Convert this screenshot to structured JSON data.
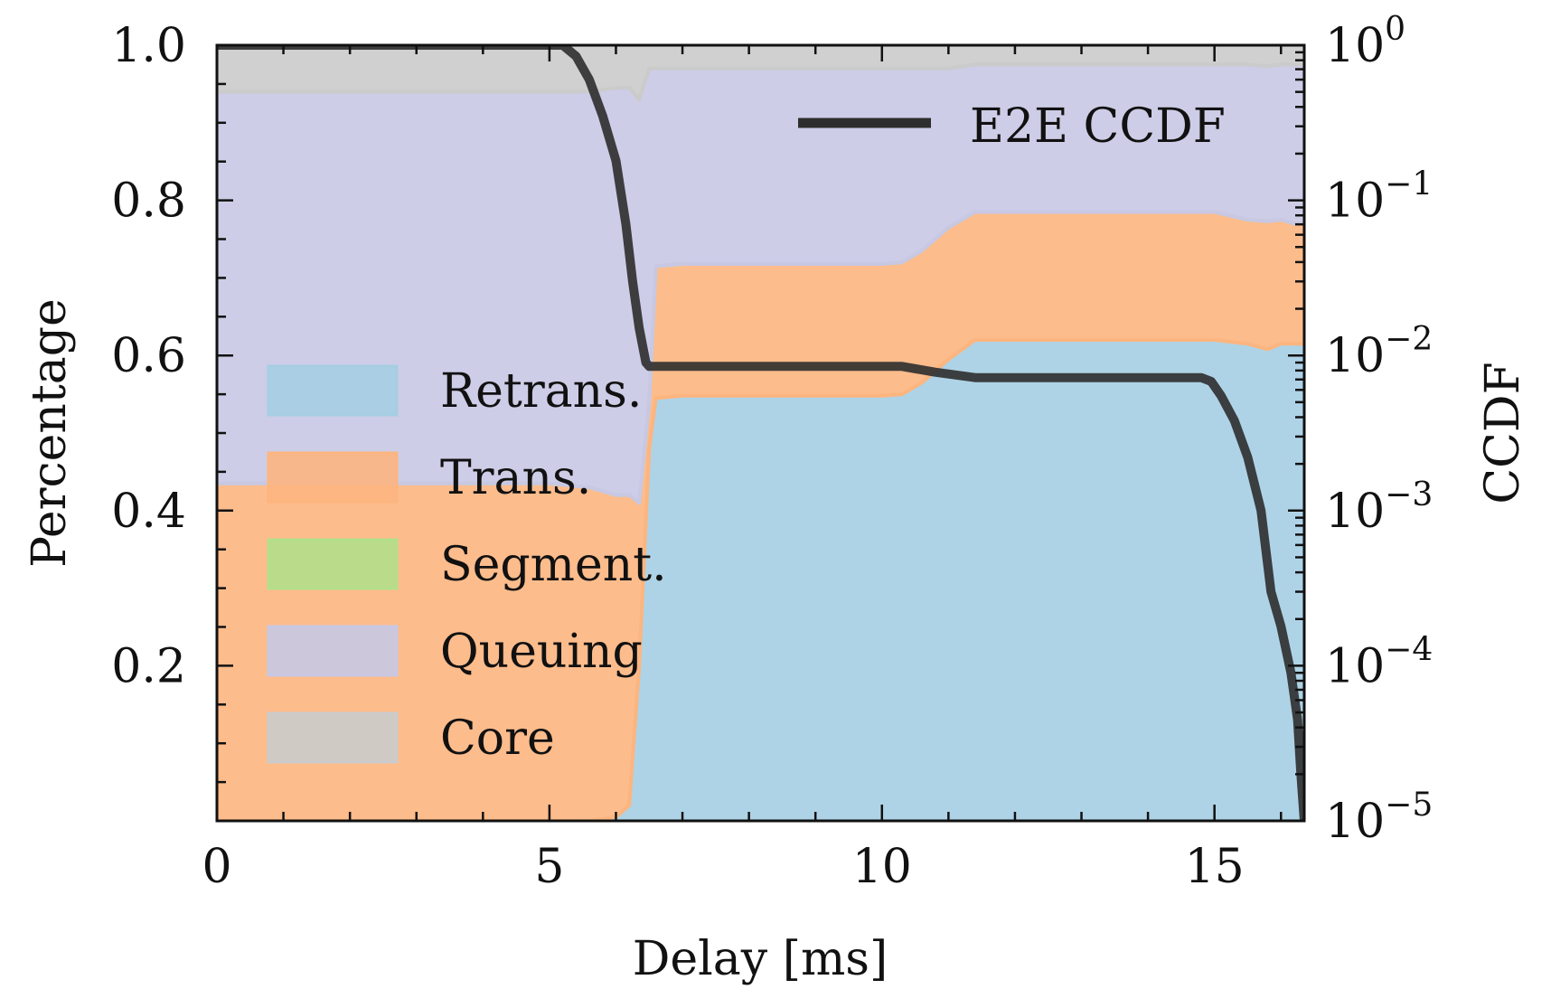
{
  "chart_data": {
    "type": "area",
    "xlabel": "Delay [ms]",
    "ylabel_left": "Percentage",
    "ylabel_right": "CCDF",
    "xlim": [
      0,
      16.35
    ],
    "ylim_left": [
      0,
      1.0
    ],
    "ylim_right": [
      1e-05,
      1
    ],
    "x_ticks": [
      0,
      5,
      10,
      15
    ],
    "x_tick_labels": [
      "0",
      "5",
      "10",
      "15"
    ],
    "y_left_ticks": [
      0.2,
      0.4,
      0.6,
      0.8,
      1.0
    ],
    "y_left_tick_labels": [
      "0.2",
      "0.4",
      "0.6",
      "0.8",
      "1.0"
    ],
    "y_right_ticks": [
      {
        "value": 1,
        "base": "10",
        "exp": "0"
      },
      {
        "value": 0.1,
        "base": "10",
        "exp": "−1"
      },
      {
        "value": 0.01,
        "base": "10",
        "exp": "−2"
      },
      {
        "value": 0.001,
        "base": "10",
        "exp": "−3"
      },
      {
        "value": 0.0001,
        "base": "10",
        "exp": "−4"
      },
      {
        "value": 1e-05,
        "base": "10",
        "exp": "−5"
      }
    ],
    "x": [
      0,
      5.0,
      5.6,
      6.0,
      6.2,
      6.35,
      6.5,
      6.6,
      7.0,
      8.0,
      9.0,
      10.0,
      10.3,
      10.6,
      11.0,
      11.4,
      12.0,
      13.0,
      14.0,
      15.0,
      15.5,
      15.8,
      16.0,
      16.2,
      16.35
    ],
    "series": [
      {
        "name": "Retrans.",
        "color": "#a6cee3",
        "values": [
          0,
          0,
          0,
          0.005,
          0.02,
          0.2,
          0.48,
          0.545,
          0.548,
          0.548,
          0.548,
          0.548,
          0.55,
          0.565,
          0.595,
          0.62,
          0.62,
          0.62,
          0.62,
          0.62,
          0.615,
          0.608,
          0.615,
          0.615,
          0.615
        ]
      },
      {
        "name": "Trans.",
        "color": "#fdb57f",
        "values": [
          0.435,
          0.435,
          0.43,
          0.415,
          0.4,
          0.21,
          0.06,
          0.17,
          0.17,
          0.17,
          0.17,
          0.17,
          0.17,
          0.17,
          0.17,
          0.165,
          0.165,
          0.165,
          0.165,
          0.165,
          0.16,
          0.165,
          0.16,
          0.155,
          0.155
        ]
      },
      {
        "name": "Segment.",
        "color": "#b2df8a",
        "values": [
          0,
          0,
          0,
          0,
          0,
          0,
          0,
          0,
          0,
          0,
          0,
          0,
          0,
          0,
          0,
          0,
          0,
          0,
          0,
          0,
          0,
          0,
          0,
          0,
          0
        ]
      },
      {
        "name": "Queuing",
        "color": "#c8c8e4",
        "values": [
          0.505,
          0.505,
          0.51,
          0.525,
          0.525,
          0.52,
          0.43,
          0.255,
          0.252,
          0.252,
          0.252,
          0.252,
          0.25,
          0.235,
          0.205,
          0.19,
          0.19,
          0.19,
          0.19,
          0.19,
          0.2,
          0.2,
          0.2,
          0.205,
          0.205
        ]
      },
      {
        "name": "Core",
        "color": "#cbcbcb",
        "values": [
          0.06,
          0.06,
          0.06,
          0.055,
          0.055,
          0.07,
          0.03,
          0.03,
          0.03,
          0.03,
          0.03,
          0.03,
          0.03,
          0.03,
          0.03,
          0.025,
          0.025,
          0.025,
          0.025,
          0.025,
          0.025,
          0.027,
          0.025,
          0.025,
          0.025
        ]
      }
    ],
    "ccdf": {
      "name": "E2E CCDF",
      "color": "#2e2e2e",
      "x": [
        0,
        5.2,
        5.4,
        5.6,
        5.8,
        6.0,
        6.15,
        6.25,
        6.35,
        6.45,
        6.5,
        6.6,
        7.0,
        8.0,
        9.0,
        10.0,
        10.3,
        10.8,
        11.4,
        12.0,
        13.0,
        14.0,
        14.8,
        14.95,
        15.1,
        15.3,
        15.5,
        15.7,
        15.85,
        16.0,
        16.15,
        16.25,
        16.3,
        16.35
      ],
      "y": [
        1,
        1,
        0.85,
        0.6,
        0.35,
        0.18,
        0.07,
        0.03,
        0.015,
        0.009,
        0.0085,
        0.0085,
        0.0085,
        0.0085,
        0.0085,
        0.0085,
        0.0085,
        0.0078,
        0.0072,
        0.0072,
        0.0072,
        0.0072,
        0.0072,
        0.0068,
        0.0055,
        0.0038,
        0.0022,
        0.001,
        0.0003,
        0.00018,
        9e-05,
        4.5e-05,
        2e-05,
        1e-05
      ]
    },
    "legend_areas_order": [
      "Retrans.",
      "Trans.",
      "Segment.",
      "Queuing",
      "Core"
    ],
    "legend_areas_position": "left",
    "legend_line_position": "top-right"
  }
}
